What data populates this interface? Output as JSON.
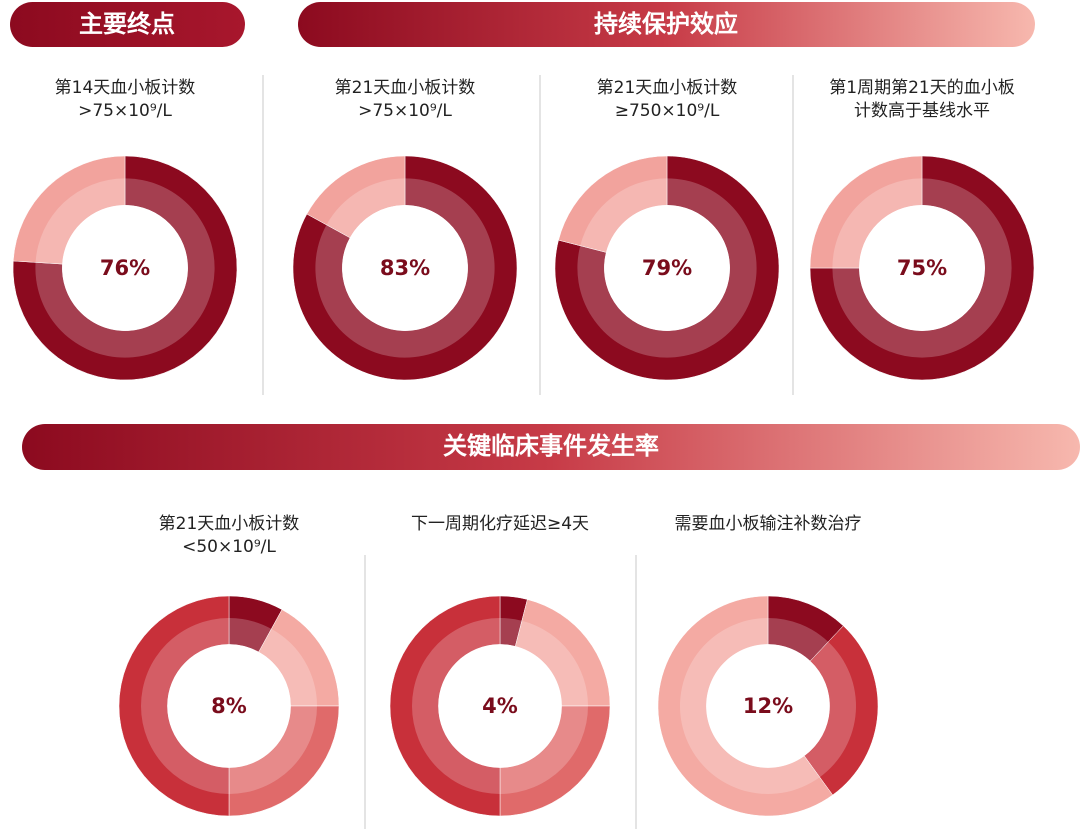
{
  "headers": [
    "主要终点",
    "持续保护效应",
    "关键临床事件发生率"
  ],
  "chart_data": [
    {
      "type": "pie",
      "title": [
        "第14天血小板计数",
        ">75×10⁹/L"
      ],
      "values": [
        76,
        24
      ],
      "value_labels": [
        "76%",
        null
      ],
      "colors": [
        "#8c0a1f",
        "#f2a39d"
      ]
    },
    {
      "type": "pie",
      "title": [
        "第21天血小板计数",
        ">75×10⁹/L"
      ],
      "values": [
        83,
        17
      ],
      "value_labels": [
        "83%",
        null
      ],
      "colors": [
        "#8c0a1f",
        "#f2a39d"
      ]
    },
    {
      "type": "pie",
      "title": [
        "第21天血小板计数",
        "≥750×10⁹/L"
      ],
      "values": [
        79,
        21
      ],
      "value_labels": [
        "79%",
        null
      ],
      "colors": [
        "#8c0a1f",
        "#f2a39d"
      ]
    },
    {
      "type": "pie",
      "title": [
        "第1周期第21天的血小板",
        "计数高于基线水平"
      ],
      "values": [
        75,
        25
      ],
      "value_labels": [
        "75%",
        null
      ],
      "colors": [
        "#8c0a1f",
        "#f2a39d"
      ]
    },
    {
      "type": "pie",
      "title": [
        "第21天血小板计数",
        "<50×10⁹/L"
      ],
      "values": [
        8,
        17,
        25,
        50
      ],
      "value_labels": [
        "8%",
        null,
        null,
        null
      ],
      "colors": [
        "#8c0a1f",
        "#f4aaa3",
        "#e06a6a",
        "#c8303a"
      ]
    },
    {
      "type": "pie",
      "title": [
        "下一周期化疗延迟≥4天"
      ],
      "values": [
        4,
        21,
        25,
        50
      ],
      "value_labels": [
        "4%",
        null,
        null,
        null
      ],
      "colors": [
        "#8c0a1f",
        "#f4aaa3",
        "#e06a6a",
        "#c8303a"
      ]
    },
    {
      "type": "pie",
      "title": [
        "需要血小板输注补数治疗"
      ],
      "values": [
        12,
        28,
        60
      ],
      "value_labels": [
        "12%",
        null,
        null
      ],
      "colors": [
        "#8c0a1f",
        "#c8303a",
        "#f4aaa3"
      ]
    }
  ]
}
